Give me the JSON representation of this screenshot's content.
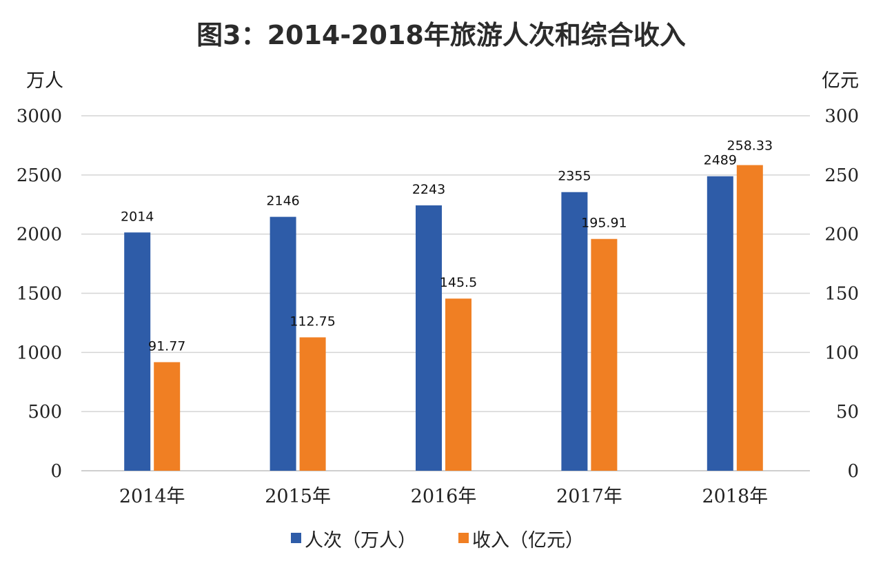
{
  "chart_data": {
    "type": "bar",
    "title": "图3：2014-2018年旅游人次和综合收入",
    "y_left_label": "万人",
    "y_right_label": "亿元",
    "categories": [
      "2014年",
      "2015年",
      "2016年",
      "2017年",
      "2018年"
    ],
    "series": [
      {
        "name": "人次（万人）",
        "axis": "left",
        "color": "#2e5ca8",
        "values": [
          2014,
          2146,
          2243,
          2355,
          2489
        ],
        "data_labels": [
          "2014",
          "2146",
          "2243",
          "2355",
          "2489"
        ]
      },
      {
        "name": "收入（亿元）",
        "axis": "right",
        "color": "#f07f23",
        "values": [
          91.77,
          112.75,
          145.5,
          195.91,
          258.33
        ],
        "data_labels": [
          "91.77",
          "112.75",
          "145.5",
          "195.91",
          "258.33"
        ]
      }
    ],
    "ylim_left": [
      0,
      3000
    ],
    "ylim_right": [
      0,
      300
    ],
    "yticks_left": [
      "0",
      "500",
      "1000",
      "1500",
      "2000",
      "2500",
      "3000"
    ],
    "yticks_right": [
      "0",
      "50",
      "100",
      "150",
      "200",
      "250",
      "300"
    ],
    "grid": true,
    "legend_position": "bottom"
  }
}
